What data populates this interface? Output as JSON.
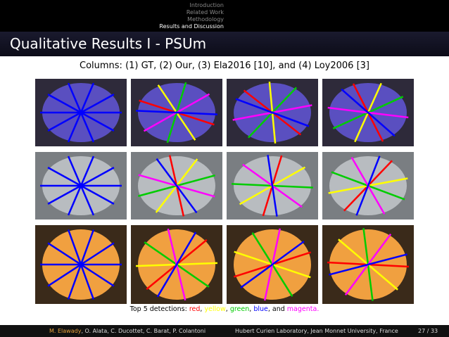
{
  "header": {
    "nav": [
      "Introduction",
      "Related Work",
      "Methodology",
      "Results and Discussion"
    ],
    "title": "Qualitative Results I - PSUm"
  },
  "subtitle": "Columns: (1) GT, (2) Our, (3) Ela2016 [10], and (4) Loy2006 [3]",
  "caption": [
    {
      "text": "Top 5 detections: ",
      "color": "#000000"
    },
    {
      "text": "red",
      "color": "#ff0000"
    },
    {
      "text": ", ",
      "color": "#000000"
    },
    {
      "text": "yellow",
      "color": "#ffff00"
    },
    {
      "text": ", ",
      "color": "#000000"
    },
    {
      "text": "green",
      "color": "#00cc00"
    },
    {
      "text": ", ",
      "color": "#000000"
    },
    {
      "text": "blue",
      "color": "#0000ff"
    },
    {
      "text": ", and ",
      "color": "#000000"
    },
    {
      "text": "magenta.",
      "color": "#ff00ff"
    }
  ],
  "footer": {
    "authors_highlight": "M. Elawady",
    "authors_rest": ", O. Alata, C. Ducottet, C. Barat, P. Colantoni",
    "affiliation": "Hubert Curien Laboratory, Jean Monnet University, France",
    "page": "27 / 33"
  }
}
